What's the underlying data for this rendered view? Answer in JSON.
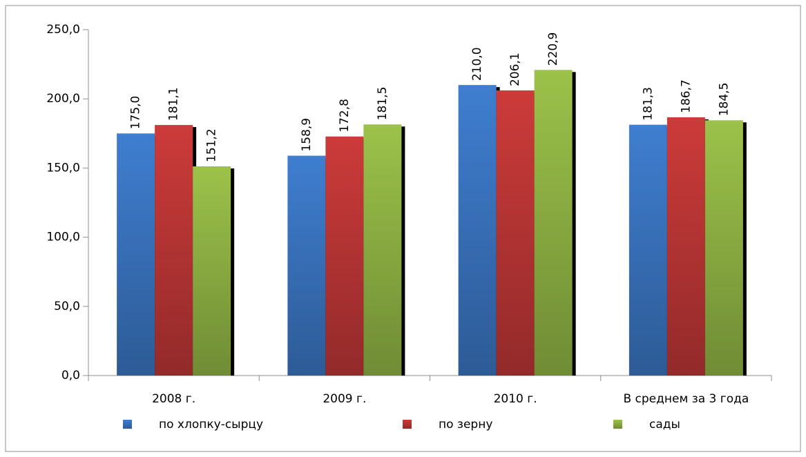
{
  "chart_data": {
    "type": "bar",
    "categories": [
      "2008 г.",
      "2009 г.",
      "2010 г.",
      "В среднем за 3 года"
    ],
    "series": [
      {
        "name": "по хлопку-сырцу",
        "color": "#3f7ed0",
        "values": [
          175.0,
          158.9,
          210.0,
          181.3
        ],
        "value_labels": [
          "175,0",
          "158,9",
          "210,0",
          "181,3"
        ]
      },
      {
        "name": "по зерну",
        "color": "#cc3b3a",
        "values": [
          181.1,
          172.8,
          206.1,
          186.7
        ],
        "value_labels": [
          "181,1",
          "172,8",
          "206,1",
          "186,7"
        ]
      },
      {
        "name": "сады",
        "color": "#9cc24a",
        "values": [
          151.2,
          181.5,
          220.9,
          184.5
        ],
        "value_labels": [
          "151,2",
          "181,5",
          "220,9",
          "184,5"
        ]
      }
    ],
    "ylim": [
      0,
      250
    ],
    "yticks": [
      {
        "value": 0,
        "label": "0,0"
      },
      {
        "value": 50,
        "label": "50,0"
      },
      {
        "value": 100,
        "label": "100,0"
      },
      {
        "value": 150,
        "label": "150,0"
      },
      {
        "value": 200,
        "label": "200,0"
      },
      {
        "value": 250,
        "label": "250,0"
      }
    ],
    "legend": "bottom"
  }
}
